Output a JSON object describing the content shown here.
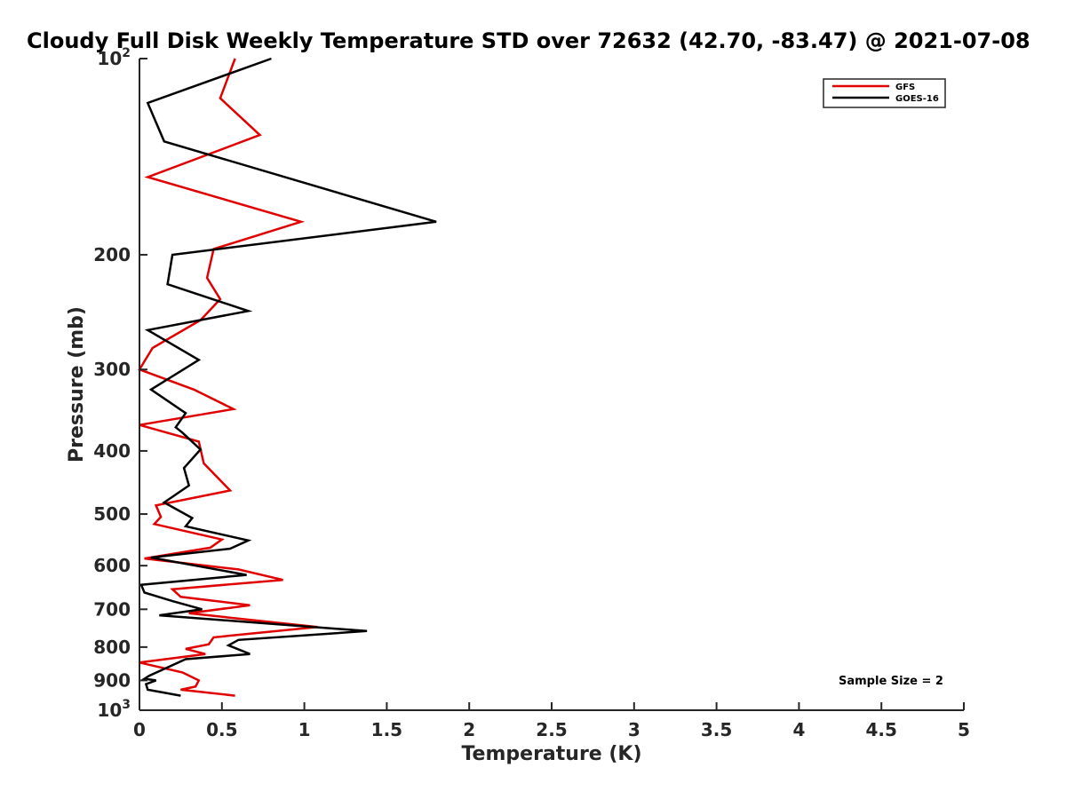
{
  "chart_data": {
    "type": "line",
    "title": "Cloudy Full Disk Weekly Temperature STD over 72632 (42.70, -83.47) @ 2021-07-08",
    "xlabel": "Temperature (K)",
    "ylabel": "Pressure (mb)",
    "xlim": [
      0,
      5
    ],
    "ylim": [
      1000,
      100
    ],
    "y_scale": "log",
    "y_reversed": true,
    "grid": false,
    "legend_position": "top-right",
    "x_ticks": [
      "0",
      "0.5",
      "1",
      "1.5",
      "2",
      "2.5",
      "3",
      "3.5",
      "4",
      "4.5",
      "5"
    ],
    "y_ticks": [
      {
        "value": 100,
        "base": "10",
        "exp": "2"
      },
      {
        "value": 200,
        "label": "200"
      },
      {
        "value": 300,
        "label": "300"
      },
      {
        "value": 400,
        "label": "400"
      },
      {
        "value": 500,
        "label": "500"
      },
      {
        "value": 600,
        "label": "600"
      },
      {
        "value": 700,
        "label": "700"
      },
      {
        "value": 800,
        "label": "800"
      },
      {
        "value": 900,
        "label": "900"
      },
      {
        "value": 1000,
        "base": "10",
        "exp": "3"
      }
    ],
    "series": [
      {
        "name": "GFS",
        "color": "#e00000",
        "points": [
          [
            0.58,
            100
          ],
          [
            0.49,
            115
          ],
          [
            0.73,
            131
          ],
          [
            0.05,
            152
          ],
          [
            0.98,
            178
          ],
          [
            0.45,
            196
          ],
          [
            0.41,
            217
          ],
          [
            0.49,
            234
          ],
          [
            0.37,
            252
          ],
          [
            0.08,
            278
          ],
          [
            0.0,
            300
          ],
          [
            0.33,
            322
          ],
          [
            0.57,
            345
          ],
          [
            0.0,
            365
          ],
          [
            0.36,
            387
          ],
          [
            0.39,
            418
          ],
          [
            0.55,
            460
          ],
          [
            0.1,
            485
          ],
          [
            0.13,
            505
          ],
          [
            0.09,
            518
          ],
          [
            0.5,
            547
          ],
          [
            0.43,
            563
          ],
          [
            0.03,
            585
          ],
          [
            0.6,
            608
          ],
          [
            0.87,
            631
          ],
          [
            0.2,
            652
          ],
          [
            0.25,
            670
          ],
          [
            0.67,
            690
          ],
          [
            0.3,
            710
          ],
          [
            1.08,
            745
          ],
          [
            0.45,
            773
          ],
          [
            0.42,
            792
          ],
          [
            0.28,
            805
          ],
          [
            0.4,
            820
          ],
          [
            0.0,
            845
          ],
          [
            0.26,
            875
          ],
          [
            0.36,
            900
          ],
          [
            0.34,
            920
          ],
          [
            0.25,
            930
          ],
          [
            0.58,
            950
          ]
        ]
      },
      {
        "name": "GOES-16",
        "color": "#000000",
        "points": [
          [
            0.8,
            100
          ],
          [
            0.05,
            117
          ],
          [
            0.15,
            134
          ],
          [
            1.8,
            178
          ],
          [
            0.2,
            200
          ],
          [
            0.17,
            222
          ],
          [
            0.66,
            244
          ],
          [
            0.05,
            261
          ],
          [
            0.36,
            290
          ],
          [
            0.07,
            322
          ],
          [
            0.28,
            350
          ],
          [
            0.22,
            368
          ],
          [
            0.26,
            375
          ],
          [
            0.37,
            398
          ],
          [
            0.27,
            425
          ],
          [
            0.3,
            452
          ],
          [
            0.15,
            480
          ],
          [
            0.32,
            507
          ],
          [
            0.28,
            522
          ],
          [
            0.66,
            549
          ],
          [
            0.55,
            565
          ],
          [
            0.07,
            583
          ],
          [
            0.65,
            620
          ],
          [
            0.01,
            642
          ],
          [
            0.03,
            660
          ],
          [
            0.2,
            680
          ],
          [
            0.38,
            700
          ],
          [
            0.12,
            715
          ],
          [
            1.38,
            756
          ],
          [
            0.6,
            780
          ],
          [
            0.54,
            795
          ],
          [
            0.67,
            820
          ],
          [
            0.28,
            835
          ],
          [
            0.06,
            885
          ],
          [
            0.03,
            895
          ],
          [
            0.1,
            900
          ],
          [
            0.04,
            912
          ],
          [
            0.05,
            930
          ],
          [
            0.25,
            950
          ]
        ]
      }
    ],
    "annotation": "Sample Size = 2"
  }
}
